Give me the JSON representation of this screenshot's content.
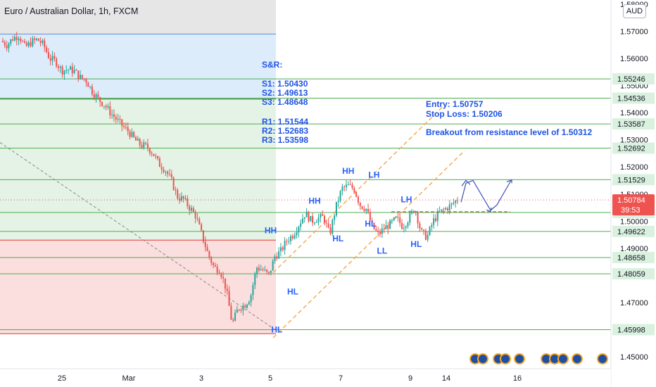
{
  "title": "Euro / Australian Dollar, 1h, FXCM",
  "currency": "AUD",
  "colors": {
    "up": "#26a69a",
    "down": "#ef5350",
    "level_line": "#4caf50",
    "channel": "#f7a54a",
    "note": "#1e53e5",
    "price_tag": "#ef5350",
    "level_tag": "#daf1e0"
  },
  "notes": {
    "sr_header": "S&R:",
    "s1": "S1: 1.50430",
    "s2": "S2: 1.49613",
    "s3": "S3: 1.48648",
    "r1": "R1: 1.51544",
    "r2": "R2: 1.52683",
    "r3": "R3: 1.53598",
    "entry": "Entry: 1.50757",
    "stop": "Stop Loss: 1.50206",
    "breakout": "Breakout from resistance level of 1.50312"
  },
  "chart_data": {
    "type": "candlestick",
    "title": "Euro / Australian Dollar, 1h, FXCM",
    "ylim": [
      1.445,
      1.581
    ],
    "y_ticks": [
      "1.58000",
      "1.57000",
      "1.56000",
      "1.55000",
      "1.54000",
      "1.53000",
      "1.52000",
      "1.51000",
      "1.50000",
      "1.49000",
      "1.48000",
      "1.47000",
      "1.46000",
      "1.45000"
    ],
    "x_ticks": [
      "25",
      "Mar",
      "3",
      "5",
      "7",
      "9",
      "14",
      "16"
    ],
    "current_price": "1.50784",
    "countdown": "39:53",
    "levels": [
      "1.55246",
      "1.54536",
      "1.53587",
      "1.52692",
      "1.51529",
      "1.50320",
      "1.49622",
      "1.48658",
      "1.48059",
      "1.45998"
    ],
    "close_path": [
      1.5665,
      1.565,
      1.5675,
      1.5685,
      1.564,
      1.566,
      1.567,
      1.565,
      1.56,
      1.559,
      1.5555,
      1.556,
      1.5555,
      1.553,
      1.552,
      1.548,
      1.545,
      1.543,
      1.54,
      1.5375,
      1.535,
      1.533,
      1.53,
      1.528,
      1.5275,
      1.525,
      1.521,
      1.519,
      1.515,
      1.509,
      1.508,
      1.505,
      1.502,
      1.495,
      1.488,
      1.483,
      1.482,
      1.475,
      1.462,
      1.468,
      1.469,
      1.472,
      1.483,
      1.482,
      1.48,
      1.487,
      1.489,
      1.493,
      1.495,
      1.499,
      1.503,
      1.5,
      1.501,
      1.5015,
      1.495,
      1.505,
      1.512,
      1.513,
      1.512,
      1.506,
      1.5045,
      1.498,
      1.495,
      1.4975,
      1.499,
      1.501,
      1.498,
      1.501,
      1.505,
      1.496,
      1.494,
      1.5,
      1.503,
      1.5045,
      1.506,
      1.508
    ],
    "annotations": [
      {
        "label": "HH",
        "x": 0.433,
        "y": 1.4955
      },
      {
        "label": "HL",
        "x": 0.47,
        "y": 1.473
      },
      {
        "label": "HH",
        "x": 0.505,
        "y": 1.5065
      },
      {
        "label": "HL",
        "x": 0.544,
        "y": 1.4925
      },
      {
        "label": "HH",
        "x": 0.56,
        "y": 1.5175
      },
      {
        "label": "LH",
        "x": 0.603,
        "y": 1.516
      },
      {
        "label": "HL",
        "x": 0.597,
        "y": 1.498
      },
      {
        "label": "LL",
        "x": 0.617,
        "y": 1.488
      },
      {
        "label": "LH",
        "x": 0.656,
        "y": 1.507
      },
      {
        "label": "HL",
        "x": 0.672,
        "y": 1.4905
      },
      {
        "label": "HL",
        "x": 0.444,
        "y": 1.459
      }
    ],
    "trade": {
      "entry": "1.50757",
      "stop_loss": "1.50206"
    }
  }
}
